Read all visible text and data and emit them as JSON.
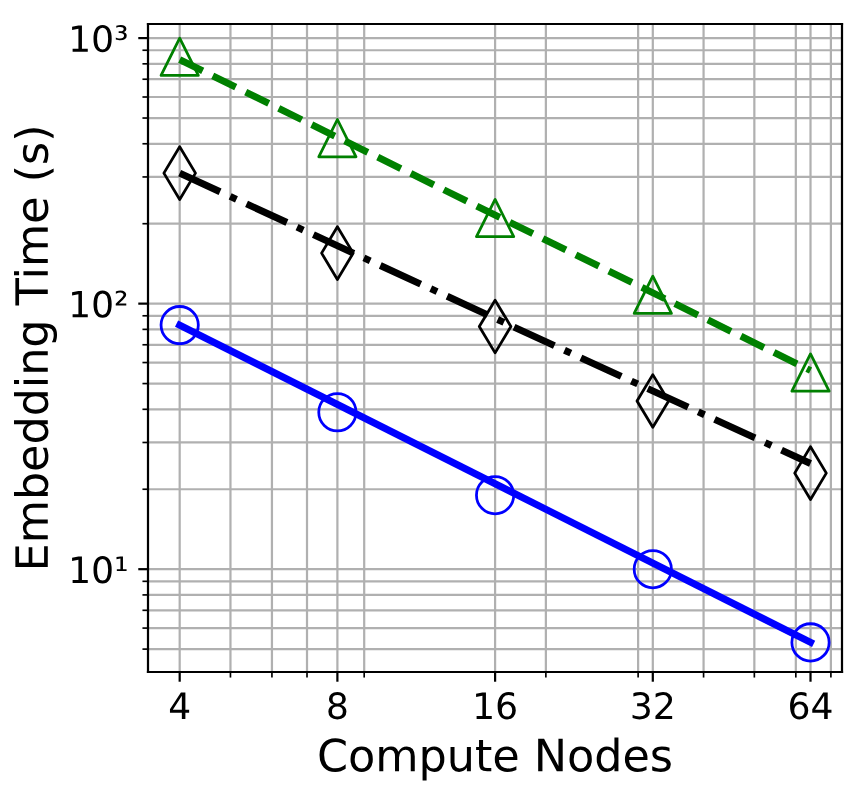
{
  "chart_data": {
    "type": "line",
    "xlabel": "Compute Nodes",
    "ylabel": "Embedding Time (s)",
    "log": "xy",
    "grid": true,
    "xlim": [
      3.48,
      73.5
    ],
    "ylim": [
      4.1,
      1130
    ],
    "xticks": [
      4,
      8,
      16,
      32,
      64
    ],
    "yticks": [
      {
        "value": 10,
        "label": "10¹"
      },
      {
        "value": 100,
        "label": "10²"
      },
      {
        "value": 1000,
        "label": "10³"
      }
    ],
    "series": [
      {
        "color": "#008000",
        "line_style": "dashed",
        "x": [
          4,
          64
        ],
        "values": [
          830,
          56
        ]
      },
      {
        "color": "#000000",
        "line_style": "dashdot",
        "x": [
          4,
          64
        ],
        "values": [
          310,
          25
        ]
      },
      {
        "color": "#0000ff",
        "line_style": "solid",
        "x": [
          4,
          64
        ],
        "values": [
          83,
          5.3
        ]
      },
      {
        "type": "scatter",
        "color": "#008000",
        "marker": "triangle",
        "x": [
          4,
          8,
          16,
          32,
          64
        ],
        "values": [
          850,
          420,
          210,
          108,
          55
        ]
      },
      {
        "type": "scatter",
        "color": "#000000",
        "marker": "diamond",
        "x": [
          4,
          8,
          16,
          32,
          64
        ],
        "values": [
          310,
          155,
          82,
          43,
          23
        ]
      },
      {
        "type": "scatter",
        "color": "#0000ff",
        "marker": "circle",
        "x": [
          4,
          8,
          16,
          32,
          64
        ],
        "values": [
          83,
          39,
          19,
          10,
          5.3
        ]
      }
    ]
  }
}
